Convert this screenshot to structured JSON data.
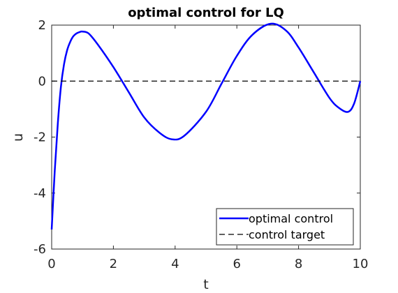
{
  "chart_data": {
    "type": "line",
    "title": "optimal control for LQ",
    "xlabel": "t",
    "ylabel": "u",
    "xlim": [
      0,
      10
    ],
    "ylim": [
      -6,
      2
    ],
    "xticks": [
      0,
      2,
      4,
      6,
      8,
      10
    ],
    "yticks": [
      -6,
      -4,
      -2,
      0,
      2
    ],
    "grid": false,
    "legend_position": "bottom-right",
    "series": [
      {
        "name": "optimal control",
        "style": "solid",
        "color": "#0000ff",
        "x": [
          0,
          0.1,
          0.2,
          0.3,
          0.4,
          0.5,
          0.6,
          0.7,
          0.8,
          0.9,
          1.0,
          1.2,
          1.5,
          2.0,
          2.5,
          3.0,
          3.5,
          3.9,
          4.3,
          5.0,
          5.5,
          6.0,
          6.5,
          7.1,
          7.6,
          8.0,
          8.5,
          9.0,
          9.3,
          9.6,
          9.8,
          10.0
        ],
        "y": [
          -5.3,
          -3.2,
          -1.5,
          -0.2,
          0.6,
          1.1,
          1.4,
          1.6,
          1.7,
          1.75,
          1.77,
          1.7,
          1.3,
          0.5,
          -0.4,
          -1.3,
          -1.85,
          -2.08,
          -1.95,
          -1.1,
          -0.1,
          0.9,
          1.65,
          2.05,
          1.8,
          1.2,
          0.3,
          -0.6,
          -0.95,
          -1.1,
          -0.8,
          0.0
        ]
      },
      {
        "name": "control target",
        "style": "dashed",
        "color": "#000000",
        "x": [
          0,
          10
        ],
        "y": [
          0,
          0
        ]
      }
    ]
  }
}
